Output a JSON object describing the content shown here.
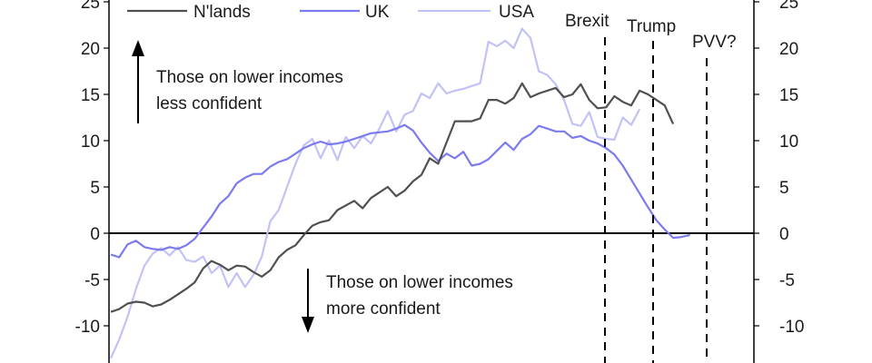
{
  "chart_data": {
    "type": "line",
    "ylim": [
      -13,
      25
    ],
    "y_ticks": [
      25,
      20,
      15,
      10,
      5,
      0,
      -5,
      -10
    ],
    "grid": false,
    "legend_position": "top",
    "series": [
      {
        "name": "N'lands",
        "color": "#505050",
        "start": 0,
        "values": [
          -8.5,
          -8.2,
          -7.6,
          -7.4,
          -7.5,
          -7.9,
          -7.7,
          -7.2,
          -6.6,
          -6.0,
          -5.3,
          -3.8,
          -3.0,
          -3.4,
          -4.0,
          -3.5,
          -3.6,
          -4.2,
          -4.7,
          -4.0,
          -2.6,
          -1.8,
          -1.3,
          -0.2,
          0.8,
          1.2,
          1.4,
          2.5,
          3.0,
          3.5,
          2.7,
          3.8,
          4.4,
          5.0,
          4.0,
          4.6,
          5.6,
          6.3,
          8.1,
          7.5,
          9.8,
          12.1,
          12.1,
          12.1,
          12.4,
          14.4,
          14.4,
          14.0,
          14.6,
          16.2,
          14.7,
          15.1,
          15.4,
          15.7,
          14.7,
          15.0,
          16.1,
          14.4,
          13.5,
          13.6,
          14.8,
          14.2,
          13.8,
          15.4,
          15.0,
          14.4,
          13.8,
          11.8
        ]
      },
      {
        "name": "UK",
        "color": "#7b7bef",
        "start": 0,
        "values": [
          -2.3,
          -2.6,
          -1.2,
          -0.8,
          -1.5,
          -1.7,
          -1.8,
          -1.5,
          -1.7,
          -1.3,
          -0.6,
          0.6,
          1.8,
          3.2,
          4.0,
          5.4,
          6.0,
          6.4,
          6.4,
          7.2,
          7.7,
          8.0,
          8.6,
          9.2,
          9.6,
          9.9,
          9.6,
          9.7,
          9.9,
          10.2,
          10.5,
          10.8,
          10.9,
          11.0,
          11.3,
          11.7,
          11.1,
          9.8,
          8.7,
          7.8,
          8.6,
          8.1,
          8.8,
          7.3,
          7.5,
          8.0,
          8.9,
          9.8,
          9.0,
          10.2,
          10.7,
          11.6,
          11.3,
          11.0,
          11.0,
          10.3,
          10.5,
          10.0,
          9.7,
          9.2,
          8.5,
          7.3,
          5.8,
          4.3,
          2.8,
          1.4,
          0.4,
          -0.5,
          -0.4,
          -0.2
        ]
      },
      {
        "name": "USA",
        "color": "#c2c2f7",
        "start": 0,
        "values": [
          -13.5,
          -11.5,
          -9.0,
          -6.0,
          -3.5,
          -2.2,
          -1.6,
          -2.4,
          -1.5,
          -2.9,
          -3.1,
          -2.5,
          -4.3,
          -3.5,
          -5.8,
          -4.3,
          -5.8,
          -4.5,
          -2.5,
          1.3,
          2.5,
          5.0,
          7.5,
          9.5,
          10.2,
          8.1,
          10.0,
          7.9,
          10.4,
          9.2,
          10.5,
          9.7,
          11.3,
          13.2,
          11.0,
          12.8,
          13.2,
          15.1,
          14.6,
          16.2,
          15.1,
          15.4,
          15.6,
          15.9,
          16.2,
          20.7,
          20.2,
          20.8,
          20.0,
          22.1,
          21.1,
          17.5,
          17.1,
          16.1,
          14.4,
          11.8,
          11.6,
          13.1,
          10.4,
          10.2,
          10.1,
          12.5,
          11.7,
          13.4
        ]
      }
    ],
    "events": [
      "Brexit",
      "Trump",
      "PVV?"
    ],
    "annotations": {
      "upper": [
        "Those on lower incomes",
        "less confident"
      ],
      "lower": [
        "Those on lower incomes",
        "more confident"
      ]
    }
  }
}
